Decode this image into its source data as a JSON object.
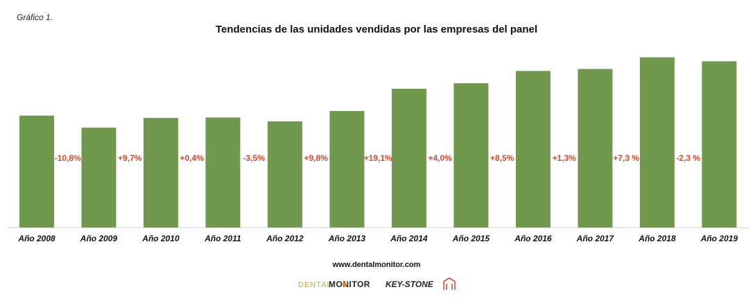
{
  "caption": "Gráfico 1.",
  "chart_data": {
    "type": "bar",
    "title": "Tendencias de las unidades vendidas por las empresas del panel",
    "xlabel": "",
    "ylabel": "",
    "categories": [
      "Año 2008",
      "Año 2009",
      "Año 2010",
      "Año 2011",
      "Año 2012",
      "Año 2013",
      "Año 2014",
      "Año 2015",
      "Año 2016",
      "Año 2017",
      "Año 2018",
      "Año 2019"
    ],
    "values": [
      100,
      89.2,
      97.9,
      98.3,
      94.8,
      104.1,
      124.0,
      128.9,
      139.9,
      141.7,
      152.1,
      148.6
    ],
    "value_note_units": "relative index (no axis printed)",
    "ylim": [
      0,
      155
    ],
    "grid": false,
    "bar_color": "#70994d",
    "change_labels": [
      "-10,8%",
      "+9,7%",
      "+0,4%",
      "-3,5%",
      "+9,8%",
      "+19,1%",
      "+4,0%",
      "+8,5%",
      "+1,3%",
      "+7,3 %",
      "-2,3 %"
    ],
    "change_label_color": "#d64a2e"
  },
  "footer": {
    "website": "www.dentalmonitor.com",
    "logo_dental": "DENTAL",
    "logo_monitor": "MONITOR",
    "logo_keystone": "KEY-STONE"
  }
}
